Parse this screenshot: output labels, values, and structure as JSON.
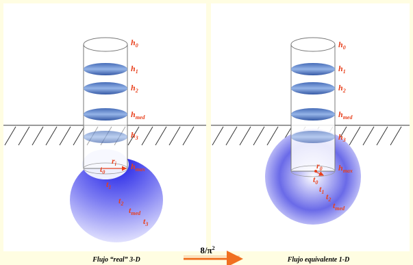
{
  "left_panel": {
    "labels": [
      {
        "base": "h",
        "sub": "0"
      },
      {
        "base": "h",
        "sub": "1"
      },
      {
        "base": "h",
        "sub": "2"
      },
      {
        "base": "h",
        "sub": "med"
      },
      {
        "base": "h",
        "sub": "3"
      },
      {
        "base": "h",
        "sub": "max"
      },
      {
        "base": "r",
        "sub": "i"
      },
      {
        "base": "t",
        "sub": "0"
      },
      {
        "base": "t",
        "sub": "1"
      },
      {
        "base": "t",
        "sub": "2"
      },
      {
        "base": "t",
        "sub": "med"
      },
      {
        "base": "t",
        "sub": "3"
      }
    ],
    "caption": "Flujo “real” 3-D"
  },
  "right_panel": {
    "labels": [
      {
        "base": "h",
        "sub": "0"
      },
      {
        "base": "h",
        "sub": "1"
      },
      {
        "base": "h",
        "sub": "2"
      },
      {
        "base": "h",
        "sub": "med"
      },
      {
        "base": "h",
        "sub": "3"
      },
      {
        "base": "h",
        "sub": "max"
      },
      {
        "base": "r",
        "sub": "0"
      },
      {
        "base": "t",
        "sub": "0"
      },
      {
        "base": "t",
        "sub": "1"
      },
      {
        "base": "t",
        "sub": "2"
      },
      {
        "base": "t",
        "sub": "med"
      }
    ],
    "caption": "Flujo equivalente 1-D"
  },
  "factor": {
    "base": "8/π",
    "sup": "2"
  }
}
